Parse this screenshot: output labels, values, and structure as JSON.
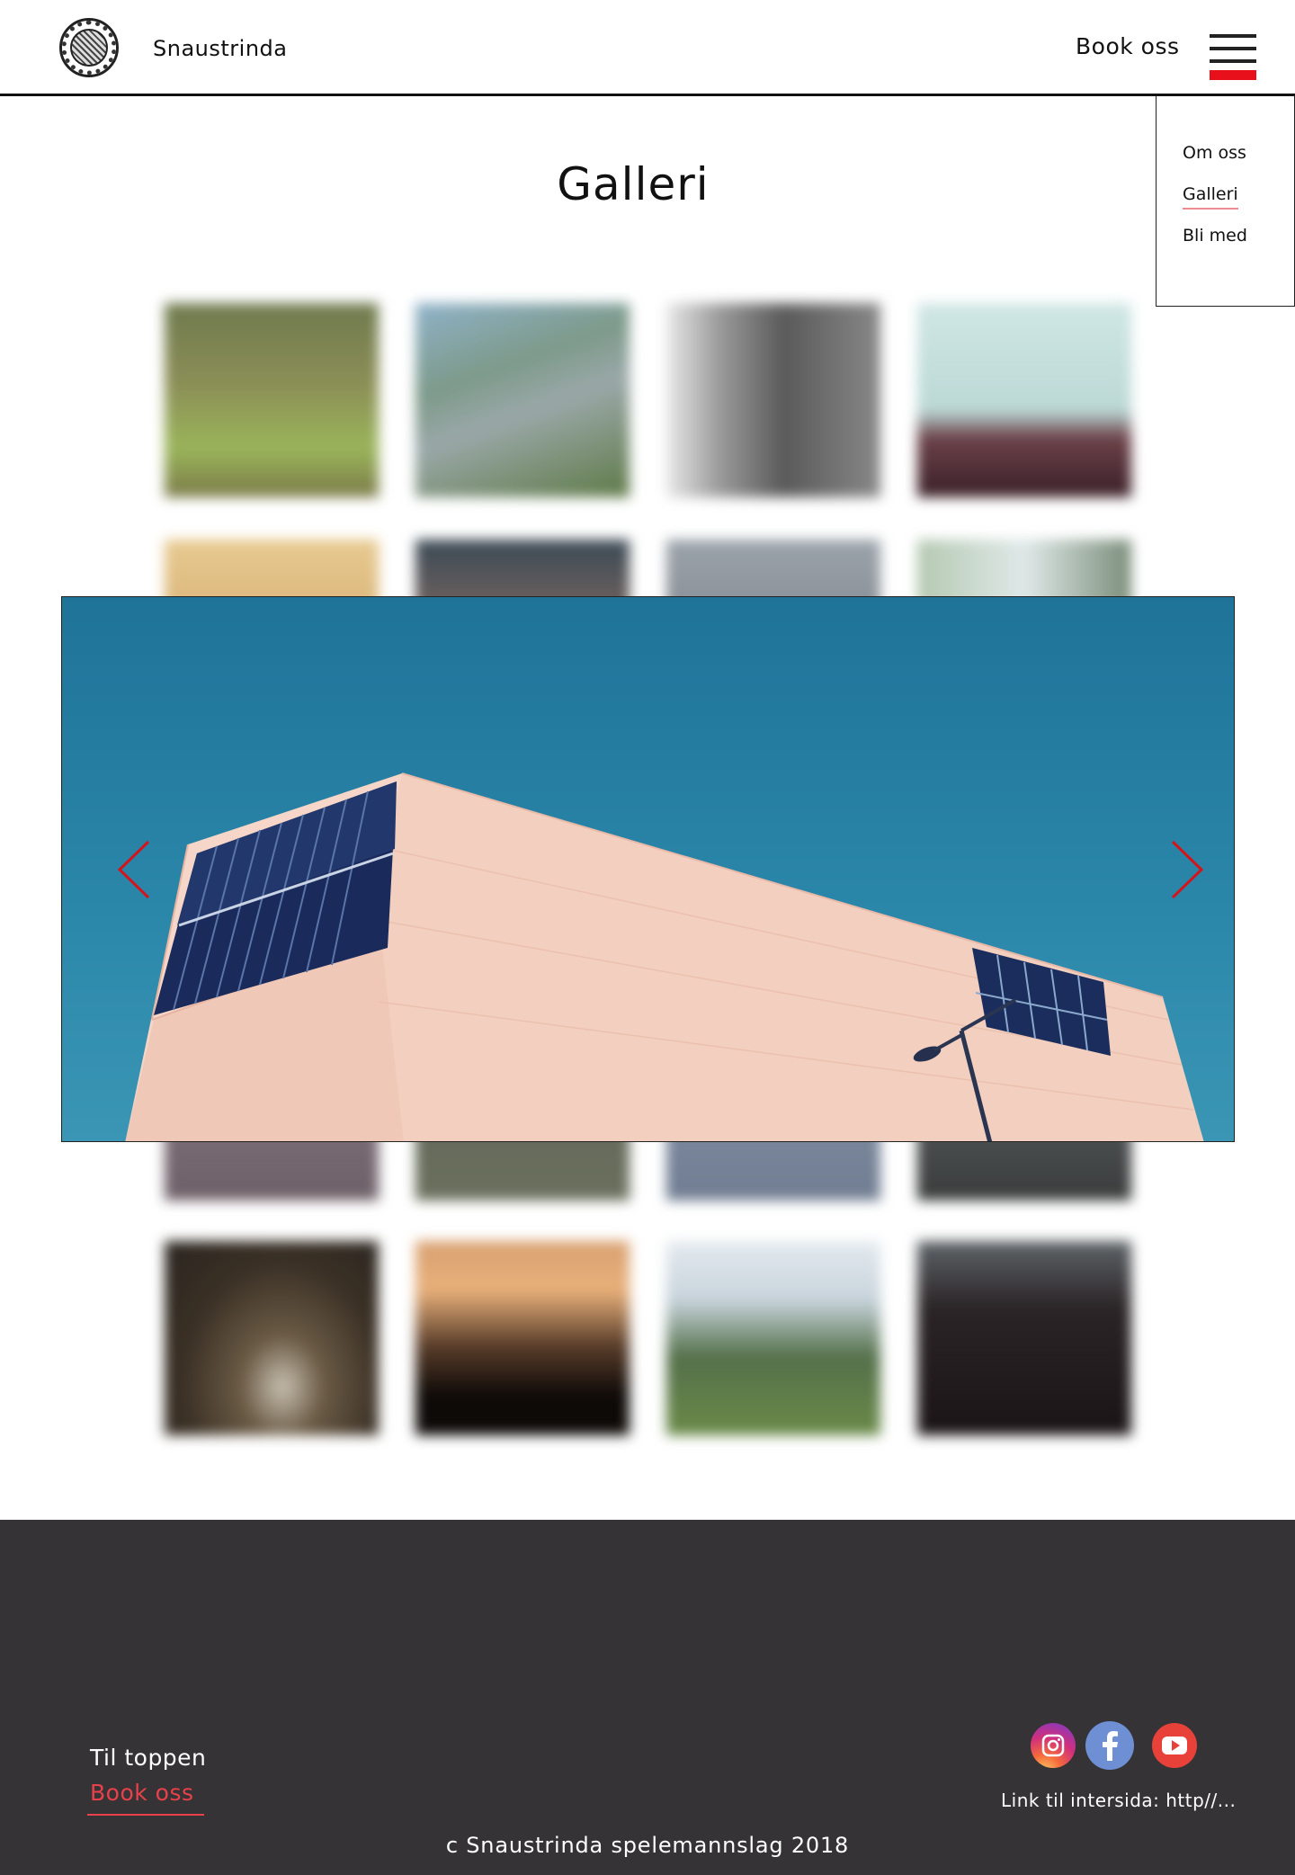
{
  "header": {
    "site_name": "Snaustrinda",
    "book_label": "Book oss",
    "logo_icon": "club-seal-logo",
    "menu_icon": "hamburger-menu-icon"
  },
  "menu": {
    "items": [
      {
        "label": "Om oss",
        "active": false
      },
      {
        "label": "Galleri",
        "active": true
      },
      {
        "label": "Bli med",
        "active": false
      }
    ]
  },
  "gallery": {
    "title": "Galleri",
    "lightbox": {
      "prev_icon": "chevron-left-icon",
      "next_icon": "chevron-right-icon",
      "accent": "#d4141b"
    }
  },
  "footer": {
    "to_top": "Til toppen",
    "book_label": "Book oss",
    "social": [
      "instagram-icon",
      "facebook-icon",
      "youtube-icon"
    ],
    "link_text": "Link til intersida: http//...",
    "copyright": "c Snaustrinda spelemannslag 2018"
  },
  "colors": {
    "accent_red": "#e8101a",
    "footer_bg": "#353336",
    "footer_link": "#e8414a"
  }
}
